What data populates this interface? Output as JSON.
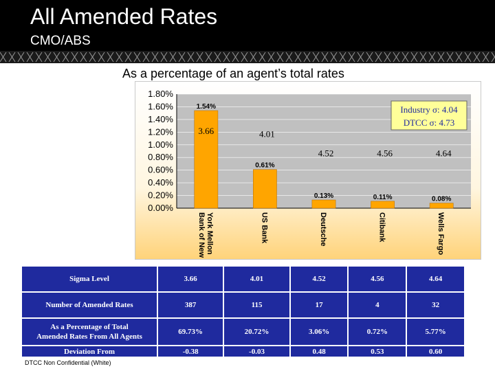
{
  "slide": {
    "title": "All Amended Rates",
    "subtitle": "CMO/ABS",
    "chart_caption": "As a percentage of an agent’s total rates",
    "footer": "DTCC Non Confidential (White)"
  },
  "colors": {
    "bar": "#FFA500",
    "plot_bg": "#C0C0C0",
    "table_bg": "#1F2A9E",
    "legend_bg": "#FFFF99",
    "legend_text": "#1F2A9E"
  },
  "chart_data": {
    "type": "bar",
    "categories": [
      "Bank of New York Mellon",
      "US Bank",
      "Deutsche",
      "Citibank",
      "Wells Fargo"
    ],
    "category_labels": [
      [
        "Bank of New",
        "York Mellon"
      ],
      [
        "US Bank"
      ],
      [
        "Deutsche"
      ],
      [
        "Citibank"
      ],
      [
        "Wells Fargo"
      ]
    ],
    "values": [
      1.54,
      0.61,
      0.13,
      0.11,
      0.08
    ],
    "data_labels": [
      "1.54%",
      "0.61%",
      "0.13%",
      "0.11%",
      "0.08%"
    ],
    "sigma_labels": [
      "3.66",
      "4.01",
      "4.52",
      "4.56",
      "4.64"
    ],
    "yticks": [
      "0.00%",
      "0.20%",
      "0.40%",
      "0.60%",
      "0.80%",
      "1.00%",
      "1.20%",
      "1.40%",
      "1.60%",
      "1.80%"
    ],
    "ylim": [
      0,
      1.8
    ],
    "grid": true,
    "legend": {
      "lines": [
        "Industry σ: 4.04",
        "DTCC σ: 4.73"
      ],
      "placement": "top-right"
    },
    "xlabel": "",
    "ylabel": ""
  },
  "table": {
    "rows": [
      {
        "label": [
          "Sigma Level"
        ],
        "values": [
          "3.66",
          "4.01",
          "4.52",
          "4.56",
          "4.64"
        ]
      },
      {
        "label": [
          "Number of Amended Rates"
        ],
        "values": [
          "387",
          "115",
          "17",
          "4",
          "32"
        ]
      },
      {
        "label": [
          "As a Percentage of Total",
          "Amended Rates From All Agents"
        ],
        "values": [
          "69.73%",
          "20.72%",
          "3.06%",
          "0.72%",
          "5.77%"
        ]
      },
      {
        "label": [
          "Deviation From"
        ],
        "values": [
          "-0.38",
          "-0.03",
          "0.48",
          "0.53",
          "0.60"
        ]
      }
    ]
  }
}
